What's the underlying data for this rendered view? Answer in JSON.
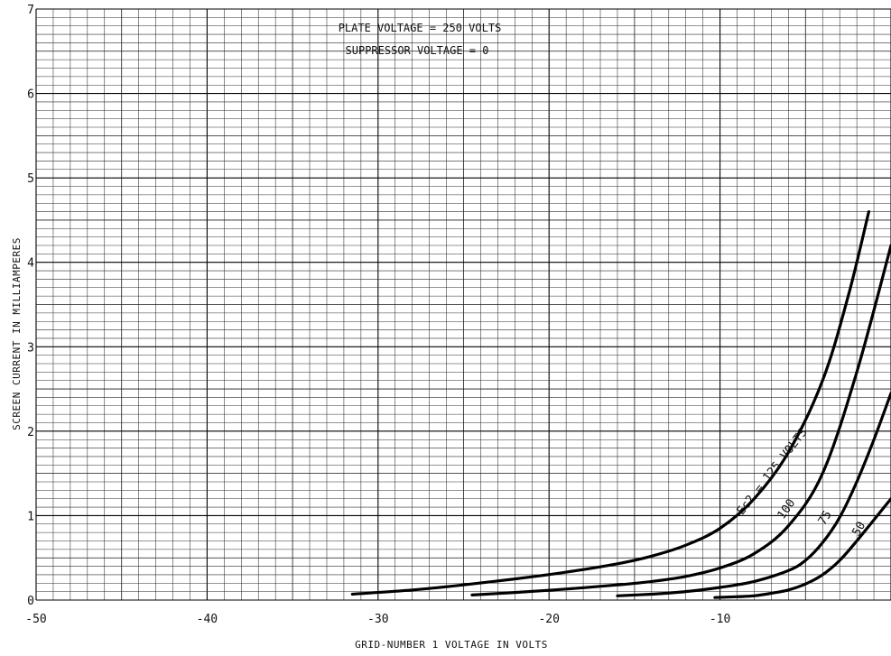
{
  "chart_data": {
    "type": "line",
    "title": "PLATE VOLTAGE = 250 VOLTS",
    "subtitle": "SUPPRESSOR VOLTAGE = 0",
    "xlabel": "GRID-NUMBER 1 VOLTAGE IN VOLTS",
    "ylabel": "SCREEN CURRENT IN MILLIAMPERES",
    "xlim": [
      -50,
      0
    ],
    "ylim": [
      0,
      7
    ],
    "x_ticks": [
      "-50",
      "-40",
      "-30",
      "-20",
      "-10"
    ],
    "y_ticks": [
      "0",
      "1",
      "2",
      "3",
      "4",
      "5",
      "6",
      "7"
    ],
    "grid": true,
    "series": [
      {
        "name": "Ec2 = 125 VOLTS",
        "x": [
          -31.5,
          -28,
          -25,
          -22,
          -19,
          -16,
          -14,
          -12,
          -10,
          -8,
          -6,
          -4,
          -2.5,
          -1.3
        ],
        "y": [
          0.07,
          0.12,
          0.18,
          0.25,
          0.33,
          0.43,
          0.52,
          0.65,
          0.85,
          1.2,
          1.75,
          2.6,
          3.6,
          4.6
        ]
      },
      {
        "name": "100",
        "x": [
          -24.5,
          -22,
          -19,
          -16,
          -14,
          -12,
          -10,
          -8,
          -6,
          -4,
          -2,
          0
        ],
        "y": [
          0.06,
          0.09,
          0.13,
          0.18,
          0.22,
          0.28,
          0.38,
          0.55,
          0.88,
          1.5,
          2.7,
          4.2
        ]
      },
      {
        "name": "75",
        "x": [
          -16,
          -14,
          -12,
          -10,
          -8,
          -6,
          -5,
          -4,
          -3,
          -2,
          -1,
          0
        ],
        "y": [
          0.05,
          0.07,
          0.1,
          0.15,
          0.22,
          0.35,
          0.47,
          0.68,
          0.98,
          1.4,
          1.9,
          2.45
        ]
      },
      {
        "name": "50",
        "x": [
          -10.3,
          -9,
          -8,
          -7,
          -6,
          -5,
          -4,
          -3,
          -2,
          -1,
          0
        ],
        "y": [
          0.03,
          0.04,
          0.05,
          0.08,
          0.12,
          0.19,
          0.3,
          0.47,
          0.7,
          0.95,
          1.2
        ]
      }
    ]
  }
}
